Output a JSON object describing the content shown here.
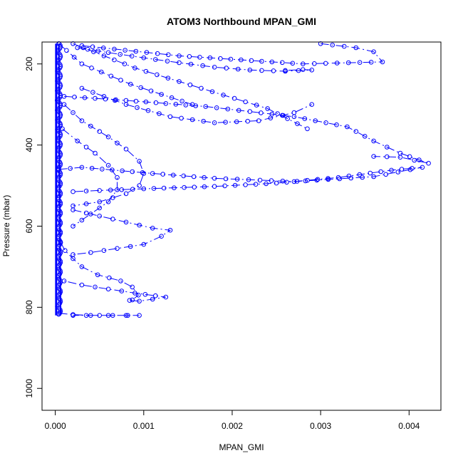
{
  "chart_data": {
    "type": "scatter",
    "title": "ATOM3 Northbound MPAN_GMI",
    "xlabel": "MPAN_GMI",
    "ylabel": "Pressure (mbar)",
    "xlim": [
      -0.00015,
      0.00436
    ],
    "ylim": [
      1054,
      146
    ],
    "y_reversed": true,
    "x_ticks": [
      {
        "value": 0.0,
        "label": "0.000"
      },
      {
        "value": 0.001,
        "label": "0.001"
      },
      {
        "value": 0.002,
        "label": "0.002"
      },
      {
        "value": 0.003,
        "label": "0.003"
      },
      {
        "value": 0.004,
        "label": "0.004"
      }
    ],
    "y_ticks": [
      {
        "value": 200,
        "label": "200"
      },
      {
        "value": 400,
        "label": "400"
      },
      {
        "value": 600,
        "label": "600"
      },
      {
        "value": 800,
        "label": "800"
      },
      {
        "value": 1000,
        "label": "1000"
      }
    ],
    "marker": "open-circle",
    "line_style": "dash-dot",
    "grid": false,
    "color": "#0000ff",
    "series": [
      {
        "x": [
          4e-05,
          0.0003,
          0.00085,
          0.00155
        ],
        "y": [
          150,
          200,
          250,
          300
        ]
      },
      {
        "x": [
          0.0002,
          0.0009,
          0.00165,
          0.0024,
          0.00285
        ],
        "y": [
          150,
          210,
          260,
          310,
          360
        ]
      },
      {
        "x": [
          0.0003,
          0.0014,
          0.0028,
          0.0037,
          0.0036,
          0.0034,
          0.003
        ],
        "y": [
          155,
          180,
          200,
          195,
          170,
          160,
          150
        ]
      },
      {
        "x": [
          0.0001,
          0.0008,
          0.0017,
          0.0027,
          0.0033,
          0.0036,
          0.0039,
          0.00422,
          0.0039,
          0.0036
        ],
        "y": [
          280,
          290,
          305,
          330,
          355,
          390,
          420,
          445,
          430,
          428
        ]
      },
      {
        "x": [
          4e-05,
          0.0003,
          0.0011,
          0.0018,
          0.0027,
          0.0036,
          0.00415,
          0.0038,
          0.0032,
          0.0025,
          0.0018,
          0.001,
          0.0005,
          0.0002
        ],
        "y": [
          460,
          455,
          470,
          482,
          490,
          478,
          455,
          462,
          480,
          494,
          502,
          508,
          512,
          515
        ]
      },
      {
        "x": [
          6e-05,
          0.00011,
          0.0002,
          0.0003,
          0.00048,
          0.00074,
          0.00087,
          0.00094,
          0.00087,
          0.00084,
          0.00095,
          0.00125,
          0.0009,
          0.0006,
          0.0003,
          0.0001
        ],
        "y": [
          640,
          660,
          680,
          700,
          720,
          735,
          750,
          770,
          782,
          783,
          785,
          775,
          765,
          755,
          745,
          735
        ]
      },
      {
        "x": [
          4e-05,
          0.0002,
          0.0004,
          0.0006,
          0.00082,
          0.00095,
          0.0005,
          0.0002
        ],
        "y": [
          815,
          818,
          820,
          820,
          820,
          820,
          820,
          820
        ]
      },
      {
        "x": [
          0.0003,
          0.0008,
          0.0013,
          0.0018,
          0.0023,
          0.0027,
          0.0029
        ],
        "y": [
          260,
          300,
          330,
          345,
          340,
          320,
          300
        ]
      },
      {
        "x": [
          0.00025,
          0.0006,
          0.001,
          0.0014,
          0.0018,
          0.0022,
          0.0026,
          0.0029,
          0.0028,
          0.0026
        ],
        "y": [
          160,
          172,
          185,
          197,
          208,
          215,
          218,
          215,
          214,
          216
        ]
      },
      {
        "x": [
          0.0002,
          0.0005,
          0.0008,
          0.0011,
          0.0013,
          0.0012,
          0.001,
          0.0007,
          0.0004,
          0.0002
        ],
        "y": [
          560,
          575,
          590,
          605,
          610,
          625,
          645,
          655,
          665,
          670
        ]
      },
      {
        "x": [
          0.0001,
          0.0003,
          0.0006,
          0.0008,
          0.00095,
          0.001,
          0.00095,
          0.0008,
          0.0005,
          0.0002
        ],
        "y": [
          300,
          340,
          380,
          410,
          440,
          470,
          500,
          520,
          540,
          550
        ]
      },
      {
        "x": [
          8e-05,
          0.00025,
          0.00045,
          0.0006,
          0.0007,
          0.0007,
          0.0006,
          0.0004,
          0.0002
        ],
        "y": [
          360,
          390,
          420,
          450,
          480,
          510,
          540,
          570,
          600
        ]
      }
    ]
  }
}
